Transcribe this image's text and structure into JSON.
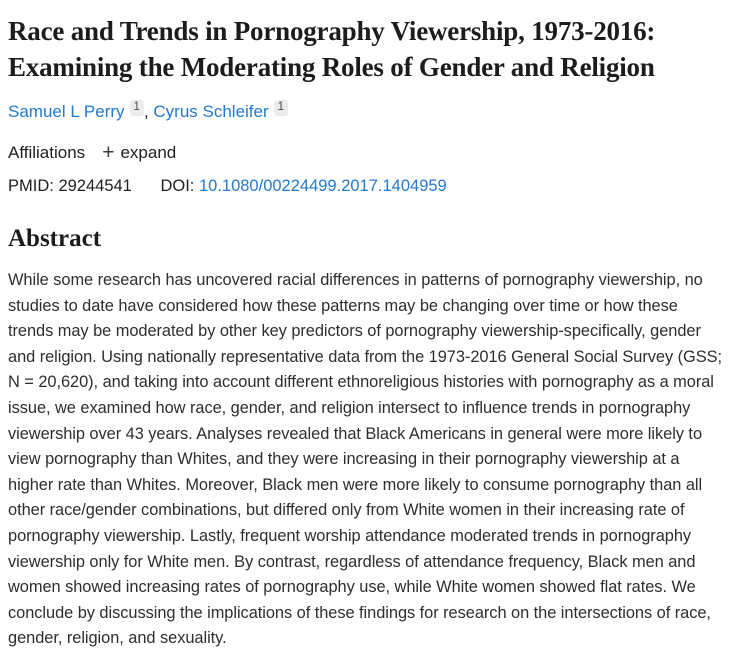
{
  "header": {
    "title": "Race and Trends in Pornography Viewership, 1973-2016: Examining the Moderating Roles of Gender and Religion"
  },
  "authors": {
    "list": [
      {
        "name": "Samuel L Perry",
        "affiliation_marker": "1"
      },
      {
        "name": "Cyrus Schleifer",
        "affiliation_marker": "1"
      }
    ],
    "separator": ", "
  },
  "affiliations": {
    "label": "Affiliations",
    "plus_icon": "+",
    "expand_label": "expand"
  },
  "identifiers": {
    "pmid_label": "PMID:",
    "pmid_value": "29244541",
    "doi_label": "DOI:",
    "doi_value": "10.1080/00224499.2017.1404959"
  },
  "abstract": {
    "heading": "Abstract",
    "text": "While some research has uncovered racial differences in patterns of pornography viewership, no studies to date have considered how these patterns may be changing over time or how these trends may be moderated by other key predictors of pornography viewership-specifically, gender and religion. Using nationally representative data from the 1973-2016 General Social Survey (GSS; N = 20,620), and taking into account different ethnoreligious histories with pornography as a moral issue, we examined how race, gender, and religion intersect to influence trends in pornography viewership over 43 years. Analyses revealed that Black Americans in general were more likely to view pornography than Whites, and they were increasing in their pornography viewership at a higher rate than Whites. Moreover, Black men were more likely to consume pornography than all other race/gender combinations, but differed only from White women in their increasing rate of pornography viewership. Lastly, frequent worship attendance moderated trends in pornography viewership only for White men. By contrast, regardless of attendance frequency, Black men and women showed increasing rates of pornography use, while White women showed flat rates. We conclude by discussing the implications of these findings for research on the intersections of race, gender, religion, and sexuality."
  },
  "colors": {
    "link_blue": "#2379cf",
    "title_text": "#1b1c1e",
    "body_text": "#2c2e30",
    "superscript_badge_bg": "#ececec"
  }
}
